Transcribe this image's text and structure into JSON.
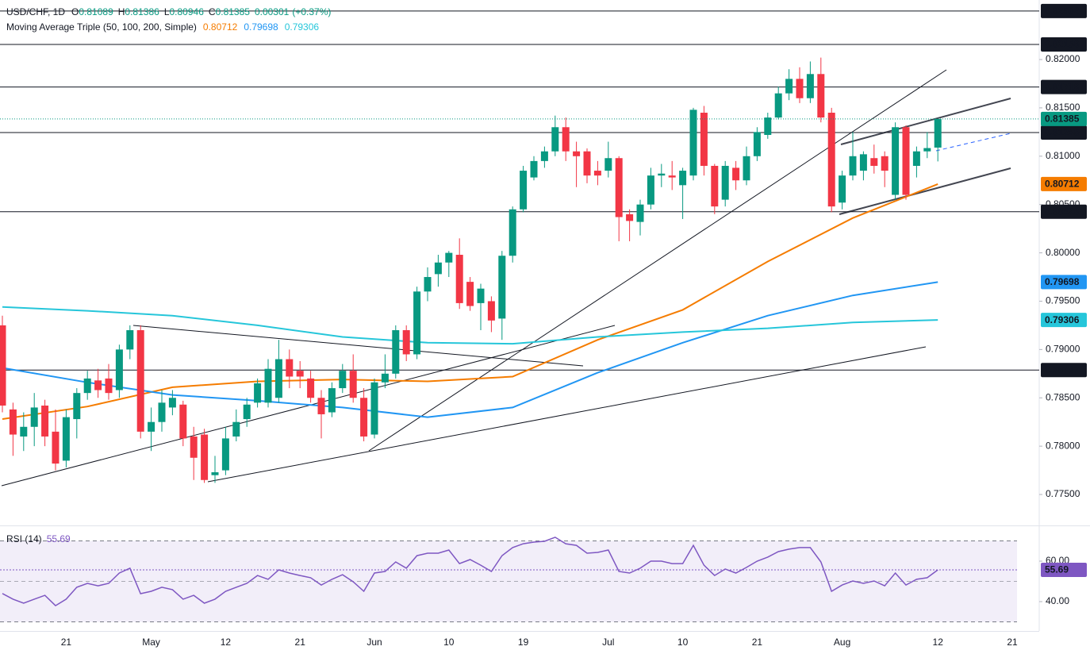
{
  "chart_data": [
    {
      "type": "candlestick",
      "symbol": "USD/CHF, 1D",
      "ohlc_labels": [
        "O",
        "H",
        "L",
        "C"
      ],
      "change": "0.00301",
      "change_pct": "(+0.37%)",
      "indicator": "Moving Average Triple (50, 100, 200, Simple)",
      "categories": [
        null,
        null,
        null,
        null,
        null,
        null,
        "21",
        null,
        null,
        null,
        null,
        null,
        null,
        null,
        "May",
        null,
        null,
        null,
        null,
        null,
        null,
        "12",
        null,
        null,
        null,
        null,
        null,
        null,
        "21",
        null,
        null,
        null,
        null,
        null,
        null,
        "Jun",
        null,
        null,
        null,
        null,
        null,
        null,
        "10",
        null,
        null,
        null,
        null,
        null,
        null,
        "19",
        null,
        null,
        null,
        null,
        null,
        null,
        null,
        "Jul",
        null,
        null,
        null,
        null,
        null,
        null,
        "10",
        null,
        null,
        null,
        null,
        null,
        null,
        "21",
        null,
        null,
        null,
        null,
        null,
        null,
        null,
        "Aug",
        null,
        null,
        null,
        null,
        null,
        null,
        null,
        null,
        "12",
        null,
        null,
        null,
        null,
        null,
        null,
        "21",
        null
      ],
      "open": [
        0.7925,
        0.7838,
        0.781,
        0.782,
        0.7842,
        0.7815,
        0.7785,
        0.7828,
        0.7855,
        0.7868,
        0.787,
        0.7858,
        0.79,
        0.792,
        0.7815,
        0.7825,
        0.784,
        0.7843,
        0.781,
        0.7812,
        0.777,
        0.7775,
        0.781,
        0.7828,
        0.7845,
        0.7845,
        0.785,
        0.789,
        0.7878,
        0.787,
        0.785,
        0.7835,
        0.786,
        0.7878,
        0.785,
        0.7812,
        0.7866,
        0.7875,
        0.792,
        0.7895,
        0.796,
        0.7978,
        0.799,
        0.7998,
        0.797,
        0.7948,
        0.795,
        0.7932,
        0.7997,
        0.8045,
        0.8078,
        0.8095,
        0.8105,
        0.813,
        0.8105,
        0.8105,
        0.8085,
        0.8085,
        0.8098,
        0.804,
        0.8032,
        0.805,
        0.808,
        0.808,
        0.807,
        0.808,
        0.8145,
        0.809,
        0.8055,
        0.8088,
        0.8075,
        0.81,
        0.8122,
        0.814,
        0.8165,
        0.818,
        0.816,
        0.8185,
        0.8145,
        0.8052,
        0.808,
        0.8085,
        0.8098,
        0.81,
        0.806,
        0.813,
        0.809,
        0.8105,
        0.81089,
        null,
        null,
        null,
        null,
        null,
        null,
        null,
        null
      ],
      "high": [
        0.7935,
        0.7845,
        0.7835,
        0.7855,
        0.7848,
        0.7838,
        0.7838,
        0.786,
        0.7878,
        0.788,
        0.7885,
        0.7905,
        0.7925,
        0.7925,
        0.784,
        0.7858,
        0.7858,
        0.7847,
        0.782,
        0.7818,
        0.779,
        0.782,
        0.7838,
        0.785,
        0.787,
        0.789,
        0.791,
        0.79,
        0.7888,
        0.7878,
        0.7858,
        0.7866,
        0.7885,
        0.7895,
        0.786,
        0.787,
        0.7895,
        0.7925,
        0.7925,
        0.7965,
        0.7985,
        0.7998,
        0.8002,
        0.8015,
        0.7975,
        0.7968,
        0.7955,
        0.8002,
        0.8048,
        0.809,
        0.81,
        0.811,
        0.8142,
        0.814,
        0.8115,
        0.8108,
        0.8095,
        0.8115,
        0.81,
        0.8045,
        0.8055,
        0.8088,
        0.8092,
        0.8095,
        0.8088,
        0.815,
        0.8152,
        0.8092,
        0.8095,
        0.8095,
        0.811,
        0.813,
        0.8145,
        0.8172,
        0.819,
        0.8192,
        0.8198,
        0.8202,
        0.815,
        0.8085,
        0.8125,
        0.8105,
        0.8112,
        0.8105,
        0.8135,
        0.8132,
        0.811,
        0.8125,
        0.81386,
        null,
        null,
        null,
        null,
        null,
        null,
        null,
        null
      ],
      "low": [
        0.7835,
        0.779,
        0.7795,
        0.78,
        0.78,
        0.7775,
        0.7778,
        0.7808,
        0.7848,
        0.785,
        0.7848,
        0.785,
        0.789,
        0.7808,
        0.7795,
        0.7815,
        0.7832,
        0.78,
        0.7765,
        0.7762,
        0.7762,
        0.777,
        0.7805,
        0.782,
        0.784,
        0.784,
        0.7845,
        0.786,
        0.786,
        0.7845,
        0.7808,
        0.783,
        0.7855,
        0.7845,
        0.7805,
        0.7808,
        0.786,
        0.787,
        0.7888,
        0.789,
        0.795,
        0.7965,
        0.7975,
        0.7942,
        0.794,
        0.792,
        0.7918,
        0.791,
        0.799,
        0.8042,
        0.8075,
        0.8088,
        0.81,
        0.8095,
        0.8068,
        0.8072,
        0.807,
        0.8078,
        0.8012,
        0.8012,
        0.8018,
        0.8045,
        0.8068,
        0.8065,
        0.8035,
        0.8075,
        0.808,
        0.804,
        0.8048,
        0.8065,
        0.807,
        0.8095,
        0.8118,
        0.8138,
        0.8158,
        0.8155,
        0.8155,
        0.8135,
        0.8042,
        0.8045,
        0.8075,
        0.8075,
        0.8082,
        0.8068,
        0.8055,
        0.8055,
        0.8078,
        0.8098,
        0.80946,
        null,
        null,
        null,
        null,
        null,
        null,
        null,
        null
      ],
      "close": [
        0.7842,
        0.7812,
        0.782,
        0.784,
        0.781,
        0.7782,
        0.783,
        0.7855,
        0.787,
        0.7858,
        0.7855,
        0.79,
        0.792,
        0.7815,
        0.7825,
        0.7845,
        0.785,
        0.7808,
        0.7788,
        0.7765,
        0.7773,
        0.7808,
        0.7825,
        0.7843,
        0.7865,
        0.788,
        0.789,
        0.7872,
        0.7872,
        0.785,
        0.7833,
        0.786,
        0.7878,
        0.785,
        0.781,
        0.7866,
        0.7875,
        0.792,
        0.7895,
        0.796,
        0.7975,
        0.799,
        0.8,
        0.7948,
        0.7945,
        0.7963,
        0.793,
        0.7997,
        0.8045,
        0.8085,
        0.8095,
        0.8105,
        0.813,
        0.8105,
        0.81,
        0.808,
        0.808,
        0.8098,
        0.8037,
        0.8033,
        0.805,
        0.808,
        0.8082,
        0.8078,
        0.8085,
        0.8148,
        0.809,
        0.8048,
        0.809,
        0.8075,
        0.81,
        0.8125,
        0.814,
        0.8165,
        0.818,
        0.816,
        0.8185,
        0.814,
        0.8048,
        0.808,
        0.81,
        0.8102,
        0.809,
        0.8085,
        0.813,
        0.806,
        0.8105,
        0.81084,
        0.81385,
        null,
        null,
        null,
        null,
        null,
        null,
        null,
        null
      ],
      "up_color": "#089981",
      "down_color": "#f23645",
      "ylim": [
        0.7718,
        0.82616
      ],
      "yticks": [
        {
          "value": 0.775,
          "label": "0.77500"
        },
        {
          "value": 0.78,
          "label": "0.78000"
        },
        {
          "value": 0.785,
          "label": "0.78500"
        },
        {
          "value": 0.79,
          "label": "0.79000"
        },
        {
          "value": 0.795,
          "label": "0.79500"
        },
        {
          "value": 0.8,
          "label": "0.80000"
        },
        {
          "value": 0.805,
          "label": "0.80500"
        },
        {
          "value": 0.81,
          "label": "0.81000"
        },
        {
          "value": 0.815,
          "label": "0.81500"
        },
        {
          "value": 0.82,
          "label": "0.82000"
        }
      ],
      "levels": [
        0.82502,
        0.82156,
        0.81716,
        0.81245,
        0.80426,
        0.78787
      ],
      "moving_averages": [
        {
          "color": "#f57c00",
          "x": [
            0,
            8,
            16,
            24,
            32,
            40,
            48,
            56,
            64,
            72,
            80,
            88
          ],
          "values": [
            0.7828,
            0.7841,
            0.7861,
            0.7867,
            0.7869,
            0.7867,
            0.7872,
            0.791,
            0.7941,
            0.7991,
            0.8036,
            0.80712
          ]
        },
        {
          "color": "#2196f3",
          "x": [
            0,
            8,
            16,
            24,
            32,
            40,
            48,
            56,
            64,
            72,
            80,
            88
          ],
          "values": [
            0.7881,
            0.7866,
            0.7853,
            0.7847,
            0.784,
            0.783,
            0.784,
            0.7876,
            0.7907,
            0.7935,
            0.7956,
            0.79698
          ]
        },
        {
          "color": "#26c6da",
          "x": [
            0,
            8,
            16,
            24,
            32,
            40,
            48,
            56,
            64,
            72,
            80,
            88
          ],
          "values": [
            0.7944,
            0.794,
            0.7935,
            0.7925,
            0.7913,
            0.7907,
            0.7906,
            0.7913,
            0.7918,
            0.7922,
            0.7928,
            0.79306
          ]
        }
      ]
    },
    {
      "type": "line",
      "title": "RSI (14)",
      "color": "#7e57c2",
      "values": [
        44,
        41.2,
        39.2,
        41.2,
        43.1,
        38,
        41.2,
        47.1,
        49,
        47.8,
        49,
        54.1,
        56.5,
        43.9,
        45.1,
        47.1,
        45.9,
        41.2,
        43.1,
        39.2,
        41.2,
        45.1,
        47.1,
        49,
        52.9,
        51,
        55.7,
        54.1,
        52.9,
        51.8,
        48.2,
        51,
        53.3,
        49.8,
        45.1,
        54.1,
        54.9,
        59.6,
        56.5,
        62.7,
        63.9,
        63.9,
        65.5,
        58.8,
        60.8,
        58,
        54.9,
        62.7,
        66.7,
        68.6,
        69.4,
        69.8,
        71.8,
        68.6,
        67.8,
        63.9,
        64.3,
        65.5,
        54.9,
        54.1,
        56.5,
        60,
        60,
        58.8,
        58.8,
        67.8,
        58,
        52.9,
        56.1,
        54.1,
        56.9,
        60,
        62,
        64.7,
        65.9,
        66.7,
        66.7,
        59.6,
        45.1,
        48.2,
        50.2,
        49,
        50.2,
        47.8,
        54.1,
        48.2,
        51,
        51.8,
        55.69,
        null,
        null,
        null,
        null,
        null,
        null,
        null,
        null
      ],
      "ylim": [
        27.45,
        77.25
      ],
      "yticks": [
        {
          "value": 40,
          "label": "40.00"
        },
        {
          "value": 60,
          "label": "60.00"
        }
      ],
      "band": [
        30,
        70
      ],
      "midline": 50
    }
  ]
}
